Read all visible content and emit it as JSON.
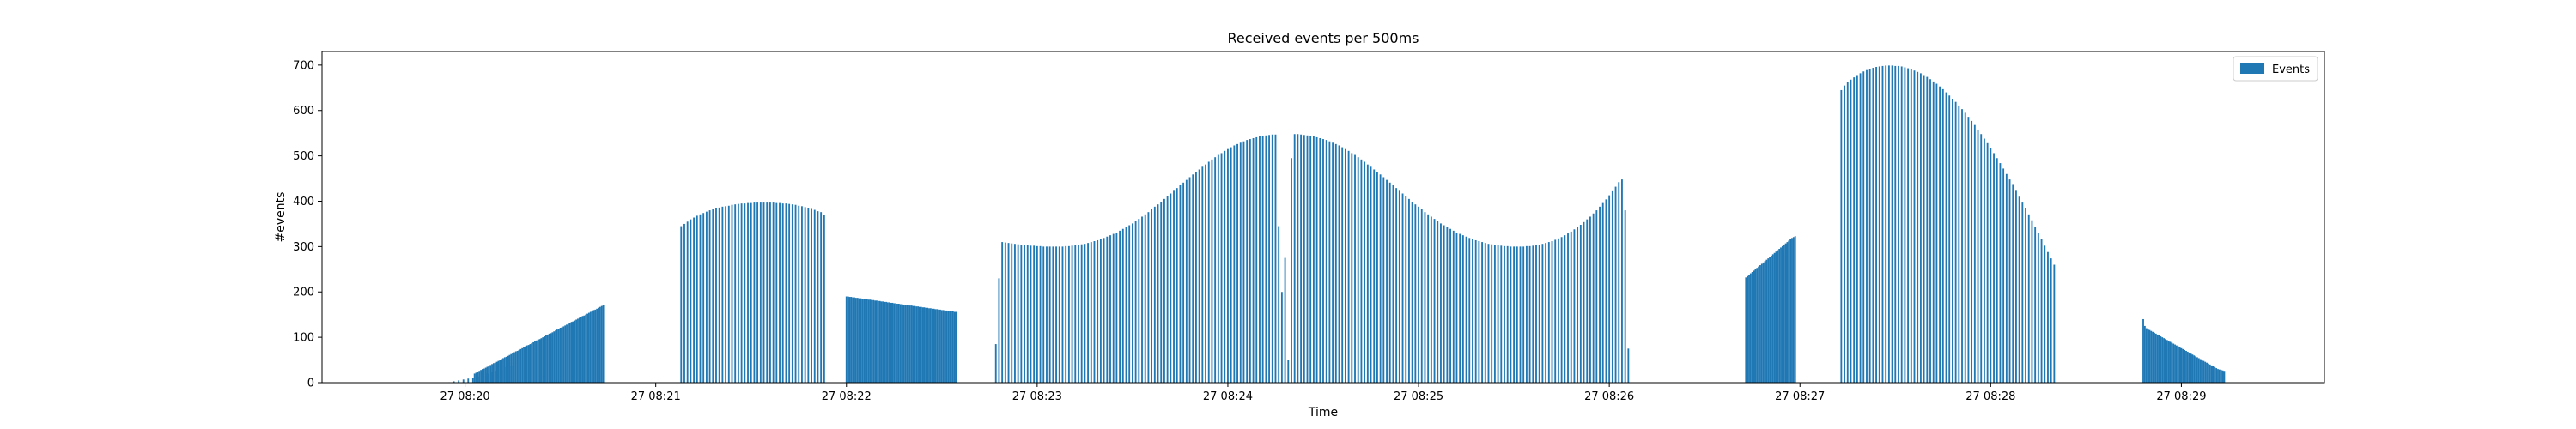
{
  "chart_data": {
    "type": "bar",
    "title": "Received events per 500ms",
    "xlabel": "Time",
    "ylabel": "#events",
    "legend": {
      "label": "Events",
      "placement": "top-right"
    },
    "color": "#1f77b4",
    "grid": false,
    "xlim": [
      "27 08:19:15",
      "27 08:29:45"
    ],
    "ylim": [
      0,
      730
    ],
    "yticks": [
      0,
      100,
      200,
      300,
      400,
      500,
      600,
      700
    ],
    "xticks": [
      {
        "time": "27 08:20:00",
        "label": "27 08:20"
      },
      {
        "time": "27 08:21:00",
        "label": "27 08:21"
      },
      {
        "time": "27 08:22:00",
        "label": "27 08:22"
      },
      {
        "time": "27 08:23:00",
        "label": "27 08:23"
      },
      {
        "time": "27 08:24:00",
        "label": "27 08:24"
      },
      {
        "time": "27 08:25:00",
        "label": "27 08:25"
      },
      {
        "time": "27 08:26:00",
        "label": "27 08:26"
      },
      {
        "time": "27 08:27:00",
        "label": "27 08:27"
      },
      {
        "time": "27 08:28:00",
        "label": "27 08:28"
      },
      {
        "time": "27 08:29:00",
        "label": "27 08:29"
      }
    ],
    "bar_width_seconds": 0.5,
    "segments": [
      {
        "start": "27 08:19:15",
        "interval_s": 10,
        "values": [
          0,
          0,
          0,
          0
        ]
      },
      {
        "start": "27 08:19:55",
        "interval_s": 1.5,
        "values": [
          1,
          3,
          5,
          7,
          9,
          11,
          14,
          17,
          20,
          23,
          26,
          30,
          34,
          38
        ]
      },
      {
        "start": "27 08:20:03",
        "interval_s": 0.5,
        "values": [
          20,
          22,
          24,
          26,
          28,
          30,
          31,
          33,
          35,
          37,
          39,
          41,
          43,
          44,
          46,
          48,
          50,
          52,
          54,
          56,
          57,
          59,
          61,
          63,
          65,
          67,
          69,
          70,
          72,
          74,
          76,
          78,
          80,
          82,
          83,
          85,
          87,
          89,
          91,
          93,
          95,
          96,
          98,
          100,
          102,
          104,
          106,
          108,
          109,
          111,
          113,
          115,
          117,
          119,
          121,
          122,
          124,
          126,
          128,
          130,
          132,
          134,
          135,
          137,
          139,
          141,
          143,
          145,
          147,
          148,
          150,
          152,
          154,
          156,
          158,
          160,
          161,
          163,
          165,
          167,
          169,
          171
        ]
      },
      {
        "start": "27 08:21:08",
        "interval_s": 1,
        "values": [
          345,
          350,
          355,
          360,
          364,
          368,
          371,
          374,
          377,
          380,
          382,
          384,
          386,
          388,
          389,
          390,
          392,
          393,
          394,
          395,
          395,
          396,
          396,
          397,
          397,
          397,
          397,
          397,
          397,
          397,
          396,
          396,
          395,
          395,
          394,
          393,
          392,
          390,
          389,
          387,
          385,
          383,
          381,
          378,
          376,
          370
        ]
      },
      {
        "start": "27 08:22:00",
        "interval_s": 0.5,
        "values": [
          190,
          190,
          189,
          189,
          188,
          188,
          187,
          187,
          186,
          186,
          185,
          185,
          184,
          184,
          183,
          183,
          182,
          182,
          181,
          181,
          180,
          180,
          179,
          179,
          178,
          178,
          177,
          177,
          176,
          176,
          175,
          175,
          174,
          174,
          173,
          173,
          172,
          172,
          171,
          171,
          170,
          170,
          169,
          169,
          168,
          168,
          167,
          167,
          166,
          166,
          165,
          165,
          164,
          164,
          163,
          163,
          162,
          162,
          161,
          161,
          160,
          160,
          159,
          159,
          158,
          158,
          157,
          157,
          156,
          156
        ]
      },
      {
        "start": "27 08:22:47",
        "interval_s": 1,
        "values": [
          85,
          230,
          310,
          309,
          308,
          307,
          306,
          305,
          304,
          303,
          303,
          302,
          302,
          301,
          301,
          300,
          300,
          300,
          300,
          300,
          300,
          300,
          301,
          301,
          302,
          303,
          304,
          305,
          306,
          308,
          310,
          312,
          314,
          316,
          319,
          322,
          325,
          328,
          331,
          335,
          339,
          343,
          347,
          351,
          356,
          361,
          366,
          371,
          376,
          382,
          388,
          393,
          399,
          405,
          411,
          417,
          423,
          429,
          435,
          441,
          447,
          453,
          459,
          465,
          470,
          476,
          481,
          487,
          492,
          497,
          502,
          506,
          511,
          515,
          519,
          523,
          526,
          529,
          532,
          535,
          537,
          539,
          541,
          543,
          544,
          545,
          546,
          547,
          547,
          345,
          200,
          275,
          50,
          495,
          548,
          548,
          547,
          546,
          545,
          544,
          543,
          541,
          539,
          537,
          535,
          532,
          529,
          526,
          523,
          519,
          515,
          511,
          506,
          502,
          497,
          492,
          487,
          481,
          476,
          470,
          465,
          459,
          453,
          447,
          441,
          435,
          429,
          423,
          417,
          411,
          405,
          399,
          393,
          388,
          382,
          376,
          371,
          366,
          361,
          356,
          351,
          347,
          343,
          339,
          335,
          331,
          328,
          325,
          322,
          319,
          316,
          314,
          312,
          310,
          308,
          306,
          305,
          304,
          303,
          302,
          301,
          301,
          300,
          300,
          300,
          300,
          300,
          301,
          301,
          302,
          303,
          304,
          306,
          308,
          310,
          312,
          315,
          318,
          321,
          325,
          329,
          333,
          338,
          343,
          348,
          354,
          360,
          366,
          373,
          380,
          388,
          396,
          404,
          413,
          422,
          432,
          442,
          448,
          380,
          75
        ]
      },
      {
        "start": "27 08:26:43",
        "interval_s": 0.5,
        "values": [
          232,
          235,
          238,
          241,
          244,
          247,
          250,
          253,
          256,
          259,
          262,
          265,
          268,
          271,
          274,
          277,
          280,
          283,
          286,
          289,
          292,
          295,
          298,
          301,
          304,
          307,
          310,
          313,
          316,
          319,
          321,
          323
        ]
      },
      {
        "start": "27 08:27:13",
        "interval_s": 1,
        "values": [
          645,
          655,
          662,
          668,
          673,
          678,
          682,
          686,
          689,
          692,
          694,
          696,
          697,
          698,
          699,
          699,
          699,
          698,
          698,
          697,
          695,
          693,
          691,
          688,
          685,
          682,
          678,
          674,
          669,
          664,
          659,
          653,
          647,
          640,
          633,
          626,
          619,
          611,
          603,
          595,
          586,
          577,
          568,
          558,
          548,
          538,
          528,
          517,
          506,
          495,
          484,
          472,
          460,
          448,
          436,
          423,
          410,
          397,
          384,
          371,
          358,
          344,
          330,
          316,
          302,
          288,
          274,
          260
        ]
      },
      {
        "start": "27 08:28:48",
        "interval_s": 0.5,
        "values": [
          140,
          125,
          120,
          118,
          116,
          114,
          112,
          110,
          108,
          106,
          104,
          102,
          100,
          98,
          96,
          94,
          92,
          90,
          88,
          86,
          84,
          82,
          80,
          78,
          76,
          74,
          72,
          70,
          68,
          66,
          64,
          62,
          60,
          58,
          56,
          54,
          52,
          50,
          48,
          46,
          44,
          42,
          40,
          38,
          36,
          34,
          32,
          30,
          29,
          28,
          27,
          26
        ]
      }
    ]
  }
}
